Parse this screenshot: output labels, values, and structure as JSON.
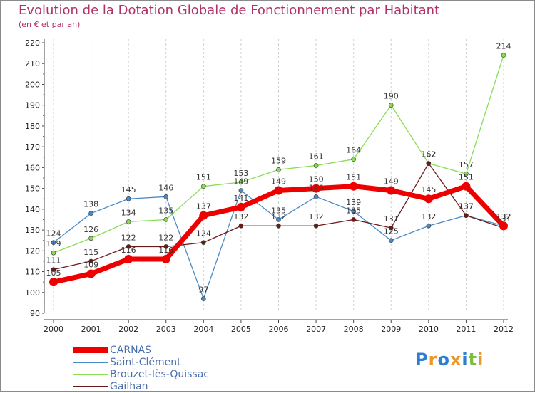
{
  "chart_data": {
    "type": "line",
    "title": "Evolution de la Dotation Globale de Fonctionnement par Habitant",
    "subtitle": "(en € et par an)",
    "xlabel": "",
    "ylabel": "",
    "ylim": [
      90,
      220
    ],
    "y_ticks": [
      "90",
      "100",
      "110",
      "120",
      "130",
      "140",
      "150",
      "160",
      "170",
      "180",
      "190",
      "200",
      "210",
      "220"
    ],
    "categories": [
      "2000",
      "2001",
      "2002",
      "2003",
      "2004",
      "2005",
      "2006",
      "2007",
      "2008",
      "2009",
      "2010",
      "2011",
      "2012"
    ],
    "grid": "vertical dashed",
    "legend_position": "bottom-left",
    "series": [
      {
        "name": "CARNAS",
        "color": "#ee0000",
        "values": [
          105,
          109,
          116,
          116,
          137,
          141,
          149,
          150,
          151,
          149,
          145,
          151,
          132
        ],
        "labels": [
          "105",
          "109",
          "116",
          "116",
          "137",
          "141",
          "149",
          "150",
          "151",
          "149",
          "145",
          "151",
          "132"
        ]
      },
      {
        "name": "Saint-Clément",
        "color": "#4a8ac8",
        "values": [
          124,
          138,
          145,
          146,
          97,
          149,
          135,
          146,
          139,
          125,
          132,
          137,
          132
        ],
        "labels": [
          "124",
          "138",
          "145",
          "146",
          "97",
          "149",
          "135",
          "146",
          "139",
          "125",
          "132",
          "137",
          "132"
        ]
      },
      {
        "name": "Brouzet-lès-Quissac",
        "color": "#88dd55",
        "values": [
          119,
          126,
          134,
          135,
          151,
          153,
          159,
          161,
          164,
          190,
          162,
          157,
          214
        ],
        "labels": [
          "119",
          "126",
          "134",
          "135",
          "151",
          "153",
          "159",
          "161",
          "164",
          "190",
          "162",
          "157",
          "214"
        ]
      },
      {
        "name": "Gailhan",
        "color": "#6b1a1a",
        "values": [
          111,
          115,
          122,
          122,
          124,
          132,
          132,
          132,
          135,
          131,
          162,
          137,
          131
        ],
        "labels": [
          "111",
          "115",
          "122",
          "122",
          "124",
          "132",
          "132",
          "132",
          "135",
          "131",
          "162",
          "137",
          "131"
        ]
      }
    ]
  },
  "brand": {
    "logo_text": [
      "P",
      "r",
      "o",
      "x",
      "i",
      "t",
      "i"
    ],
    "logo_colors": [
      "#2f7fd0",
      "#e8992a",
      "#2f7fd0",
      "#e8992a",
      "#2f7fd0",
      "#7cbf3a",
      "#e8992a"
    ]
  }
}
